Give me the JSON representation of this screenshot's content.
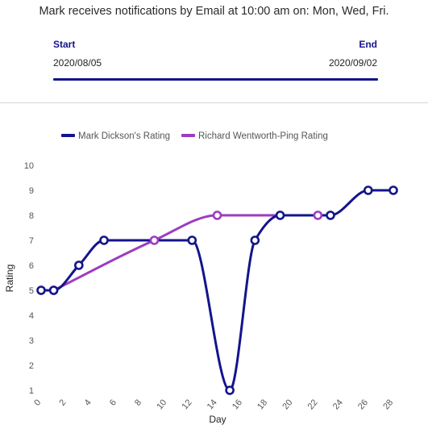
{
  "header": {
    "notification_text": "Mark receives notifications by Email at 10:00 am on: Mon, Wed, Fri."
  },
  "date_range": {
    "start_label": "Start",
    "start_value": "2020/08/05",
    "end_label": "End",
    "end_value": "2020/09/02"
  },
  "colors": {
    "accent": "#14148c",
    "series_mark": "#14148c",
    "series_richard": "#9b3dc0",
    "divider": "#d4d4d4"
  },
  "chart_data": {
    "type": "line",
    "xlabel": "Day",
    "ylabel": "Rating",
    "xlim": [
      0,
      28
    ],
    "ylim": [
      1,
      10
    ],
    "x_ticks": [
      0,
      2,
      4,
      6,
      8,
      10,
      12,
      14,
      16,
      18,
      20,
      22,
      24,
      26,
      28
    ],
    "y_ticks": [
      1,
      2,
      3,
      4,
      5,
      6,
      7,
      8,
      9,
      10
    ],
    "grid": false,
    "legend_position": "top",
    "series": [
      {
        "name": "Mark Dickson's Rating",
        "color": "#14148c",
        "points": [
          {
            "x": 0,
            "y": 5
          },
          {
            "x": 1,
            "y": 5
          },
          {
            "x": 3,
            "y": 6
          },
          {
            "x": 5,
            "y": 7
          },
          {
            "x": 12,
            "y": 7
          },
          {
            "x": 15,
            "y": 1
          },
          {
            "x": 17,
            "y": 7
          },
          {
            "x": 19,
            "y": 8
          },
          {
            "x": 23,
            "y": 8
          },
          {
            "x": 26,
            "y": 9
          },
          {
            "x": 28,
            "y": 9
          }
        ]
      },
      {
        "name": "Richard Wentworth-Ping Rating",
        "color": "#9b3dc0",
        "points": [
          {
            "x": 1,
            "y": 5
          },
          {
            "x": 9,
            "y": 7
          },
          {
            "x": 14,
            "y": 8
          },
          {
            "x": 22,
            "y": 8
          }
        ]
      }
    ]
  }
}
